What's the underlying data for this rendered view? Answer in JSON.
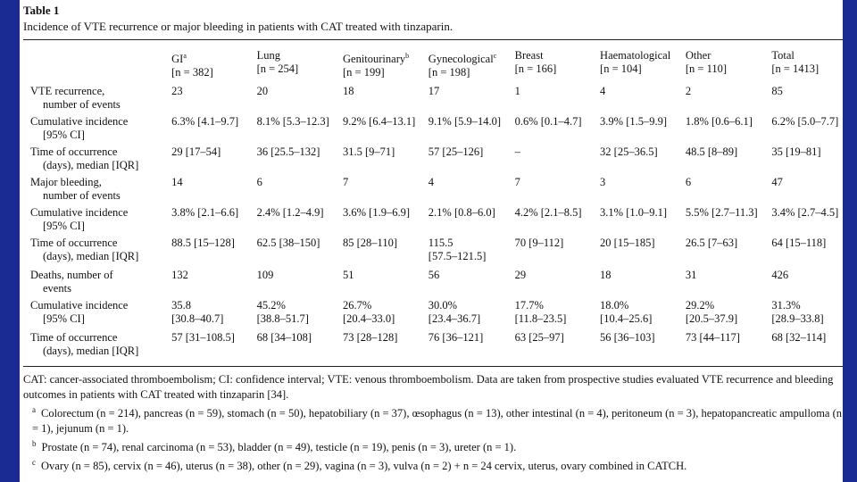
{
  "caption": {
    "label": "Table 1",
    "title": "Incidence of VTE recurrence or major bleeding in patients with CAT treated with tinzaparin."
  },
  "columns": [
    {
      "name": "GI",
      "sup": "a",
      "n": "[n = 382]"
    },
    {
      "name": "Lung",
      "sup": "",
      "n": "[n = 254]"
    },
    {
      "name": "Genitourinary",
      "sup": "b",
      "n": "[n = 199]"
    },
    {
      "name": "Gynecological",
      "sup": "c",
      "n": "[n = 198]"
    },
    {
      "name": "Breast",
      "sup": "",
      "n": "[n = 166]"
    },
    {
      "name": "Haematological",
      "sup": "",
      "n": "[n = 104]"
    },
    {
      "name": "Other",
      "sup": "",
      "n": "[n = 110]"
    },
    {
      "name": "Total",
      "sup": "",
      "n": "[n = 1413]"
    }
  ],
  "rows": [
    {
      "label": [
        "VTE recurrence,",
        "number of events"
      ],
      "cells": [
        [
          "23"
        ],
        [
          "20"
        ],
        [
          "18"
        ],
        [
          "17"
        ],
        [
          "1"
        ],
        [
          "4"
        ],
        [
          "2"
        ],
        [
          "85"
        ]
      ]
    },
    {
      "label": [
        "Cumulative incidence",
        "[95% CI]"
      ],
      "cells": [
        [
          "6.3% [4.1–9.7]"
        ],
        [
          "8.1% [5.3–12.3]"
        ],
        [
          "9.2% [6.4–13.1]"
        ],
        [
          "9.1% [5.9–14.0]"
        ],
        [
          "0.6% [0.1–4.7]"
        ],
        [
          "3.9% [1.5–9.9]"
        ],
        [
          "1.8% [0.6–6.1]"
        ],
        [
          "6.2% [5.0–7.7]"
        ]
      ]
    },
    {
      "label": [
        "Time of occurrence",
        "(days), median [IQR]"
      ],
      "cells": [
        [
          "29 [17–54]"
        ],
        [
          "36 [25.5–132]"
        ],
        [
          "31.5 [9–71]"
        ],
        [
          "57 [25–126]"
        ],
        [
          "–"
        ],
        [
          "32 [25–36.5]"
        ],
        [
          "48.5 [8–89]"
        ],
        [
          "35 [19–81]"
        ]
      ]
    },
    {
      "label": [
        "Major bleeding,",
        "number of events"
      ],
      "cells": [
        [
          "14"
        ],
        [
          "6"
        ],
        [
          "7"
        ],
        [
          "4"
        ],
        [
          "7"
        ],
        [
          "3"
        ],
        [
          "6"
        ],
        [
          "47"
        ]
      ]
    },
    {
      "label": [
        "Cumulative incidence",
        "[95% CI]"
      ],
      "cells": [
        [
          "3.8% [2.1–6.6]"
        ],
        [
          "2.4% [1.2–4.9]"
        ],
        [
          "3.6% [1.9–6.9]"
        ],
        [
          "2.1% [0.8–6.0]"
        ],
        [
          "4.2% [2.1–8.5]"
        ],
        [
          "3.1% [1.0–9.1]"
        ],
        [
          "5.5% [2.7–11.3]"
        ],
        [
          "3.4% [2.7–4.5]"
        ]
      ]
    },
    {
      "label": [
        "Time of occurrence",
        "(days), median [IQR]"
      ],
      "cells": [
        [
          "88.5 [15–128]"
        ],
        [
          "62.5 [38–150]"
        ],
        [
          "85 [28–110]"
        ],
        [
          "115.5",
          "[57.5–121.5]"
        ],
        [
          "70 [9–112]"
        ],
        [
          "20 [15–185]"
        ],
        [
          "26.5 [7–63]"
        ],
        [
          "64 [15–118]"
        ]
      ]
    },
    {
      "label": [
        "Deaths, number of",
        "events"
      ],
      "cells": [
        [
          "132"
        ],
        [
          "109"
        ],
        [
          "51"
        ],
        [
          "56"
        ],
        [
          "29"
        ],
        [
          "18"
        ],
        [
          "31"
        ],
        [
          "426"
        ]
      ]
    },
    {
      "label": [
        "Cumulative incidence",
        "[95% CI]"
      ],
      "cells": [
        [
          "35.8",
          "[30.8–40.7]"
        ],
        [
          "45.2%",
          "[38.8–51.7]"
        ],
        [
          "26.7%",
          "[20.4–33.0]"
        ],
        [
          "30.0%",
          "[23.4–36.7]"
        ],
        [
          "17.7%",
          "[11.8–23.5]"
        ],
        [
          "18.0%",
          "[10.4–25.6]"
        ],
        [
          "29.2%",
          "[20.5–37.9]"
        ],
        [
          "31.3%",
          "[28.9–33.8]"
        ]
      ]
    },
    {
      "label": [
        "Time of occurrence",
        "(days), median [IQR]"
      ],
      "cells": [
        [
          "57 [31–108.5]"
        ],
        [
          "68 [34–108]"
        ],
        [
          "73 [28–128]"
        ],
        [
          "76 [36–121]"
        ],
        [
          "63 [25–97]"
        ],
        [
          "56 [36–103]"
        ],
        [
          "73 [44–117]"
        ],
        [
          "68 [32–114]"
        ]
      ]
    }
  ],
  "notes": {
    "main": "CAT: cancer-associated thromboembolism; CI: confidence interval; VTE: venous thromboembolism. Data are taken from prospective studies evaluated VTE recurrence and bleeding outcomes in patients with CAT treated with tinzaparin [34].",
    "footnotes": [
      {
        "mark": "a",
        "text": "Colorectum (n = 214), pancreas (n = 59), stomach (n = 50), hepatobiliary (n = 37), œsophagus (n = 13), other intestinal (n = 4), peritoneum (n = 3), hepatopancreatic ampulloma (n = 1), jejunum (n = 1)."
      },
      {
        "mark": "b",
        "text": "Prostate (n = 74), renal carcinoma (n = 53), bladder (n = 49), testicle (n = 19), penis (n = 3), ureter (n = 1)."
      },
      {
        "mark": "c",
        "text": "Ovary (n = 85), cervix (n = 46), uterus (n = 38), other (n = 29), vagina (n = 3), vulva (n = 2) + n = 24 cervix, uterus, ovary combined in CATCH."
      }
    ]
  },
  "colors": {
    "background": "#1b2b94",
    "panel": "#ffffff",
    "text": "#111111"
  }
}
